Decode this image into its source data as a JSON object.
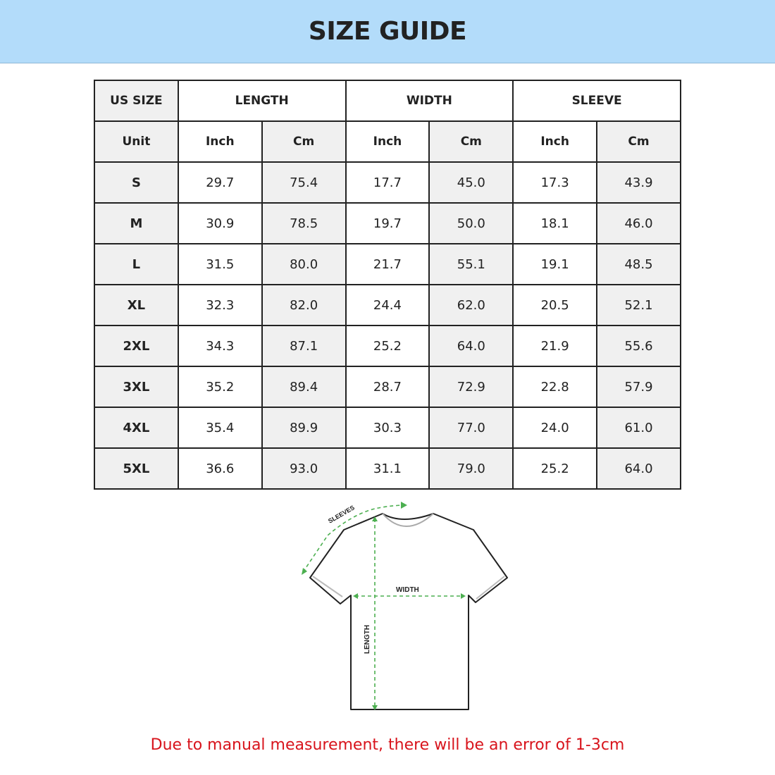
{
  "title": "SIZE GUIDE",
  "table": {
    "group_headers": [
      "US SIZE",
      "LENGTH",
      "WIDTH",
      "SLEEVE"
    ],
    "unit_row": [
      "Unit",
      "Inch",
      "Cm",
      "Inch",
      "Cm",
      "Inch",
      "Cm"
    ],
    "rows": [
      [
        "S",
        "29.7",
        "75.4",
        "17.7",
        "45.0",
        "17.3",
        "43.9"
      ],
      [
        "M",
        "30.9",
        "78.5",
        "19.7",
        "50.0",
        "18.1",
        "46.0"
      ],
      [
        "L",
        "31.5",
        "80.0",
        "21.7",
        "55.1",
        "19.1",
        "48.5"
      ],
      [
        "XL",
        "32.3",
        "82.0",
        "24.4",
        "62.0",
        "20.5",
        "52.1"
      ],
      [
        "2XL",
        "34.3",
        "87.1",
        "25.2",
        "64.0",
        "21.9",
        "55.6"
      ],
      [
        "3XL",
        "35.2",
        "89.4",
        "28.7",
        "72.9",
        "22.8",
        "57.9"
      ],
      [
        "4XL",
        "35.4",
        "89.9",
        "30.3",
        "77.0",
        "24.0",
        "61.0"
      ],
      [
        "5XL",
        "36.6",
        "93.0",
        "31.1",
        "79.0",
        "25.2",
        "64.0"
      ]
    ]
  },
  "diagram": {
    "sleeves_label": "SLEEVES",
    "width_label": "WIDTH",
    "length_label": "LENGTH",
    "measure_color": "#4caf50"
  },
  "note": "Due to manual measurement, there will be an error of 1-3cm",
  "colors": {
    "banner": "#b3dcfa",
    "note": "#d8141c"
  }
}
